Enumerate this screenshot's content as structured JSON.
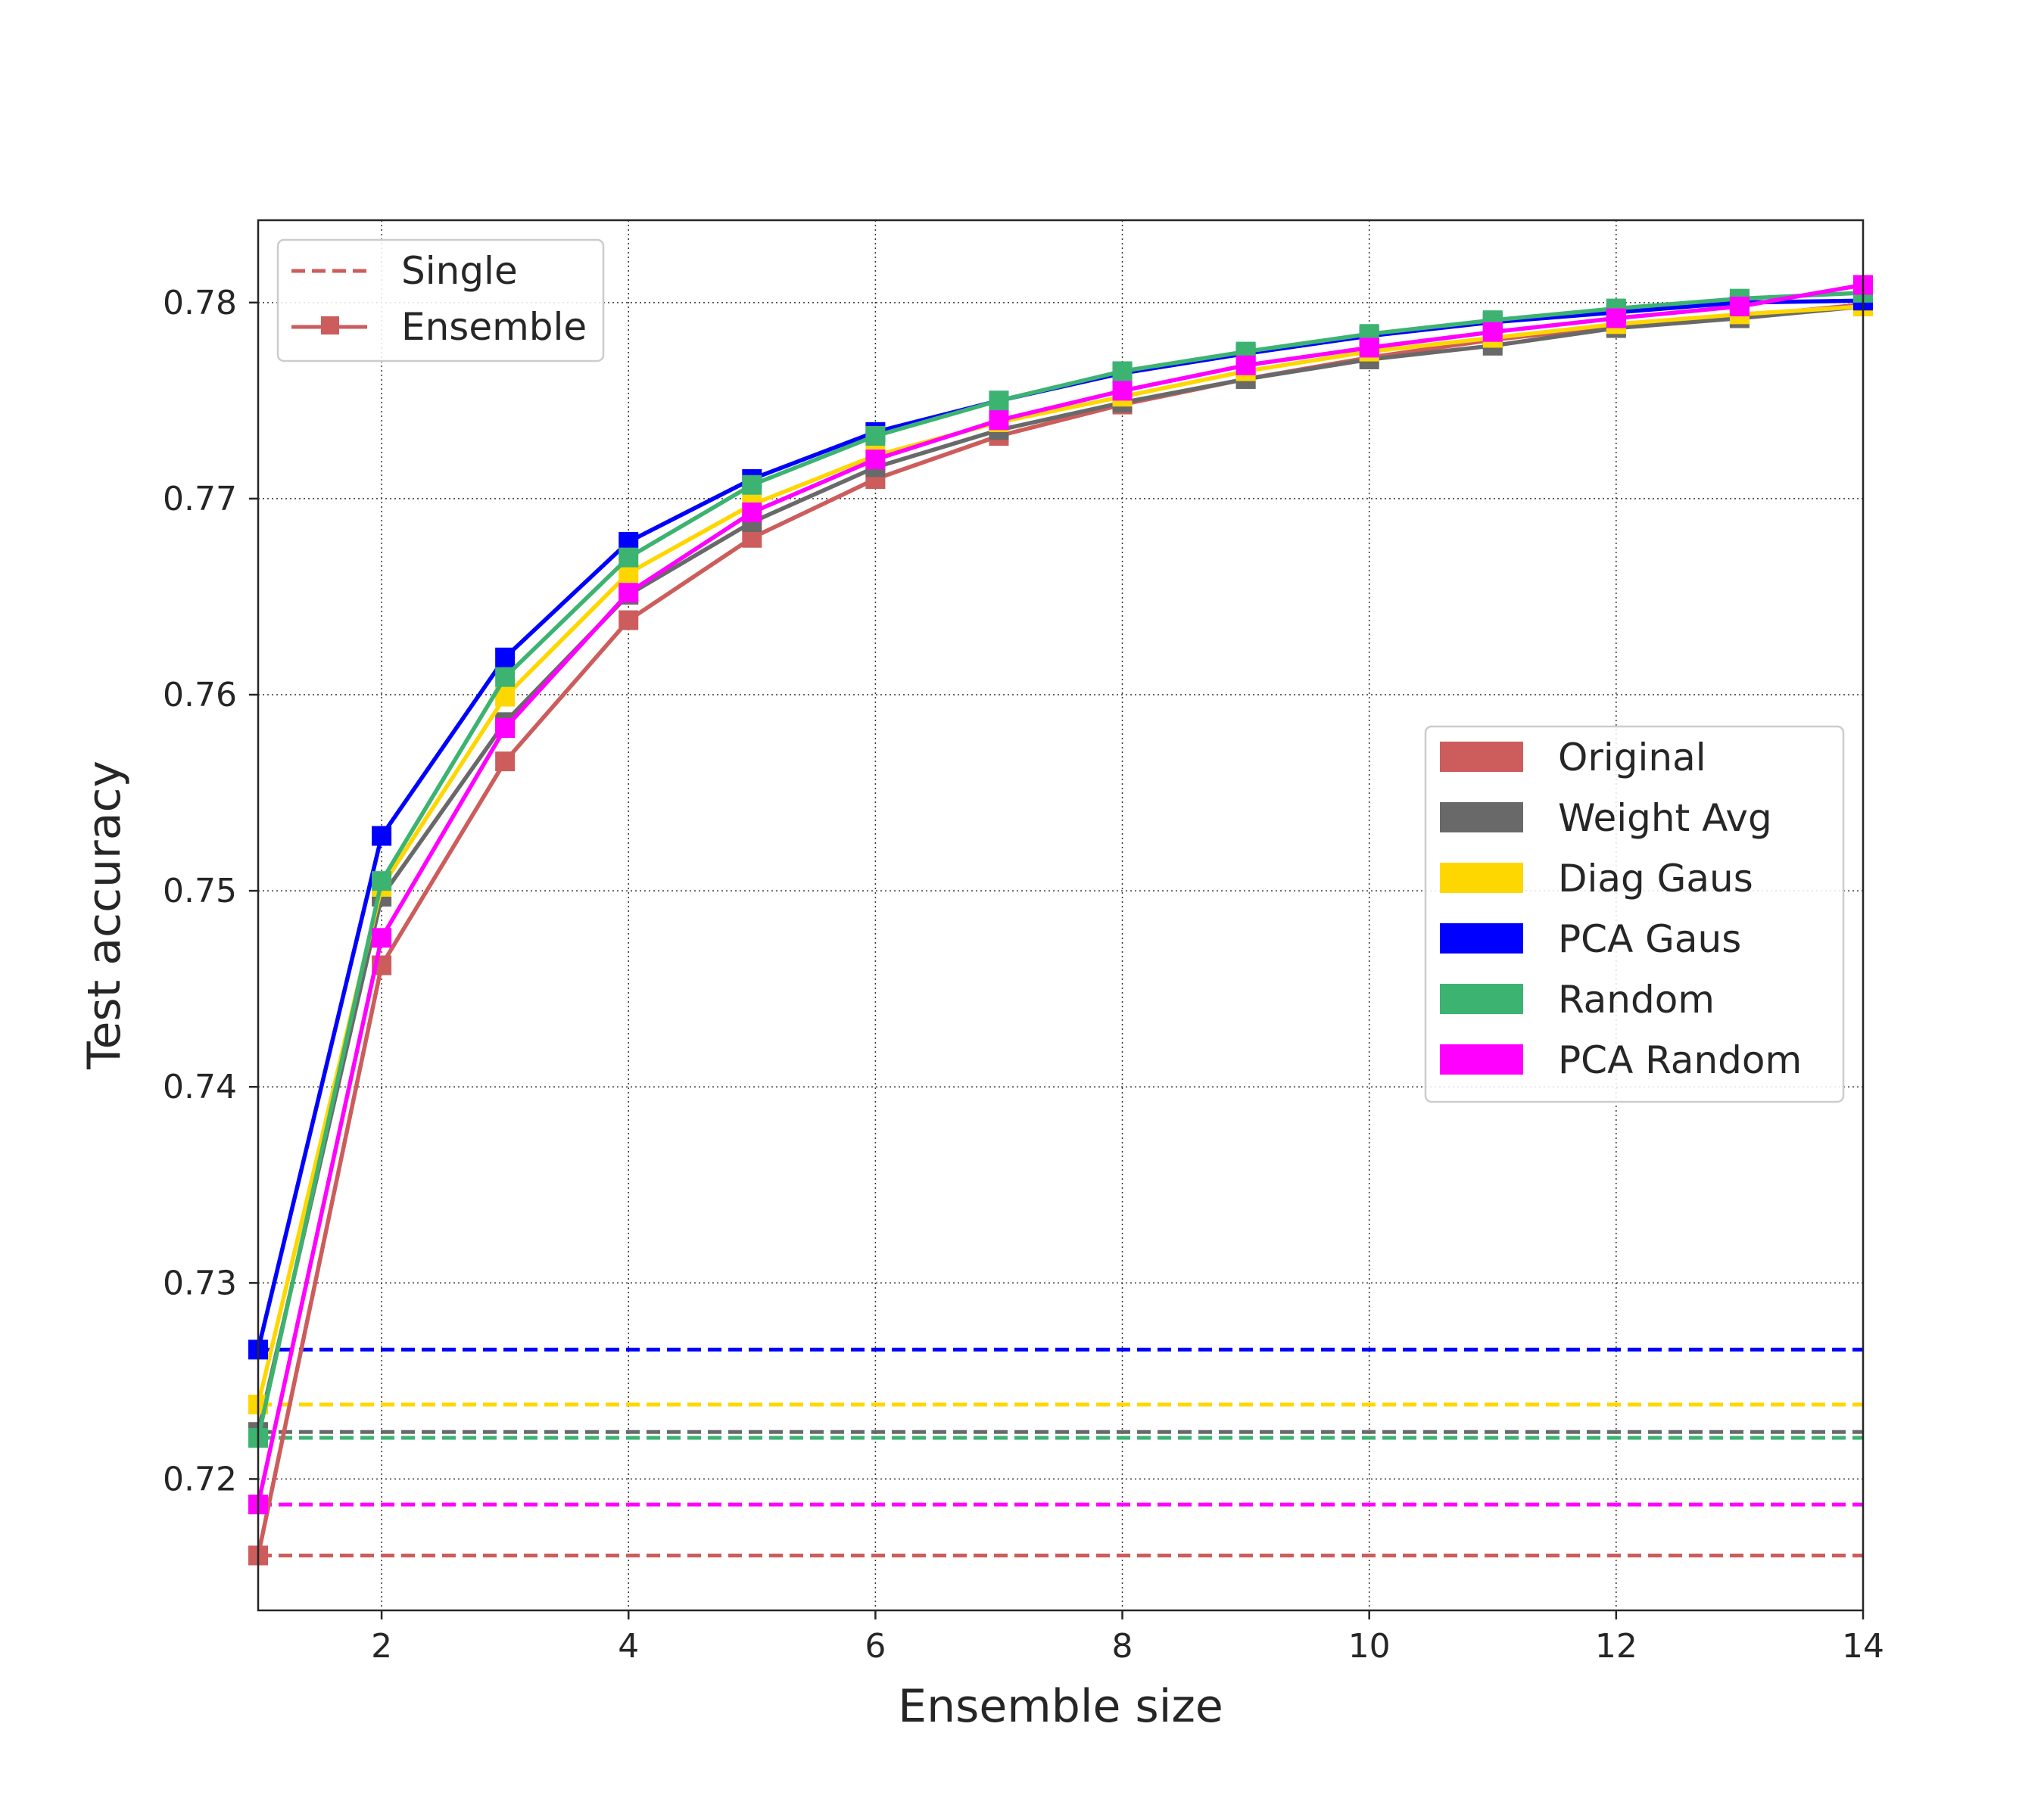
{
  "chart_data": {
    "type": "line",
    "title": "",
    "xlabel": "Ensemble size",
    "ylabel": "Test accuracy",
    "xlim": [
      1,
      14
    ],
    "ylim": [
      0.7133,
      0.7842
    ],
    "xticks": [
      2,
      4,
      6,
      8,
      10,
      12,
      14
    ],
    "yticks": [
      0.72,
      0.73,
      0.74,
      0.75,
      0.76,
      0.77,
      0.78
    ],
    "ytick_labels": [
      "0.72",
      "0.73",
      "0.74",
      "0.75",
      "0.76",
      "0.77",
      "0.78"
    ],
    "grid": true,
    "x": [
      1,
      2,
      3,
      4,
      5,
      6,
      7,
      8,
      9,
      10,
      11,
      12,
      13,
      14
    ],
    "series": [
      {
        "name": "Original",
        "color": "#cd5c5c",
        "single": 0.7161,
        "values": [
          0.7161,
          0.7462,
          0.7566,
          0.7638,
          0.768,
          0.771,
          0.7732,
          0.7748,
          0.7761,
          0.7772,
          0.7781,
          0.7788,
          0.7793,
          0.7799
        ]
      },
      {
        "name": "Weight Avg",
        "color": "#696969",
        "single": 0.7224,
        "values": [
          0.7224,
          0.7497,
          0.7586,
          0.7651,
          0.7688,
          0.7716,
          0.7735,
          0.7749,
          0.7761,
          0.7771,
          0.7778,
          0.7787,
          0.7792,
          0.7798
        ]
      },
      {
        "name": "Diag Gaus",
        "color": "#ffd700",
        "single": 0.7238,
        "values": [
          0.7238,
          0.7502,
          0.7599,
          0.7662,
          0.7697,
          0.7722,
          0.7739,
          0.7752,
          0.7765,
          0.7775,
          0.7782,
          0.7789,
          0.7794,
          0.7798
        ]
      },
      {
        "name": "PCA Gaus",
        "color": "#0000ff",
        "single": 0.7266,
        "values": [
          0.7266,
          0.7528,
          0.7619,
          0.7678,
          0.771,
          0.7734,
          0.775,
          0.7764,
          0.7774,
          0.7783,
          0.779,
          0.7795,
          0.78,
          0.7801
        ]
      },
      {
        "name": "Random",
        "color": "#3cb371",
        "single": 0.7221,
        "values": [
          0.7221,
          0.7505,
          0.7609,
          0.767,
          0.7707,
          0.7732,
          0.775,
          0.7765,
          0.7775,
          0.7784,
          0.7791,
          0.7797,
          0.7802,
          0.7805
        ]
      },
      {
        "name": "PCA Random",
        "color": "#ff00ff",
        "single": 0.7187,
        "values": [
          0.7187,
          0.7476,
          0.7583,
          0.7652,
          0.7693,
          0.772,
          0.774,
          0.7755,
          0.7768,
          0.7777,
          0.7785,
          0.7792,
          0.7798,
          0.7809
        ]
      }
    ],
    "style_legend": {
      "placement": "upper-left",
      "entries": [
        {
          "label": "Single",
          "style": "dashed",
          "color": "#cd5c5c"
        },
        {
          "label": "Ensemble",
          "style": "solid-square-marker",
          "color": "#cd5c5c"
        }
      ]
    },
    "color_legend_placement": "center-right"
  }
}
